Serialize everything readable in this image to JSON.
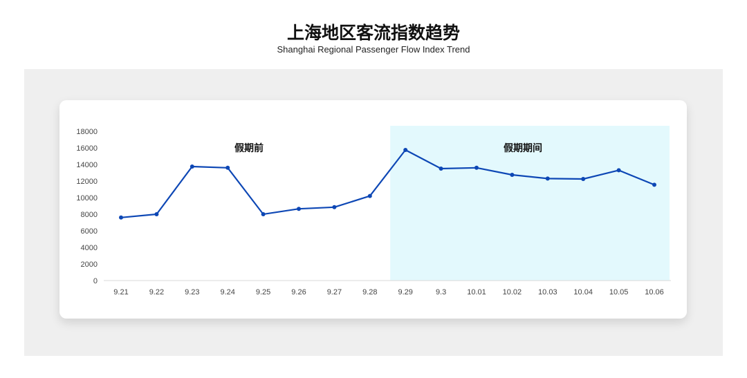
{
  "title": "上海地区客流指数趋势",
  "subtitle": "Shanghai Regional Passenger Flow Index Trend",
  "chart_data": {
    "type": "line",
    "categories": [
      "9.21",
      "9.22",
      "9.23",
      "9.24",
      "9.25",
      "9.26",
      "9.27",
      "9.28",
      "9.29",
      "9.3",
      "10.01",
      "10.02",
      "10.03",
      "10.04",
      "10.05",
      "10.06"
    ],
    "values": [
      7600,
      8000,
      13750,
      13600,
      8000,
      8650,
      8850,
      10200,
      15750,
      13500,
      13600,
      12750,
      12300,
      12250,
      13300,
      11550
    ],
    "ylim": [
      0,
      18000
    ],
    "yticks": [
      0,
      2000,
      4000,
      6000,
      8000,
      10000,
      12000,
      14000,
      16000,
      18000
    ],
    "grid": false,
    "line_color": "#0d47b5",
    "annotations": [
      {
        "label": "假期前",
        "range": [
          "9.21",
          "9.28"
        ]
      },
      {
        "label": "假期期间",
        "range": [
          "9.29",
          "10.06"
        ],
        "shade_color": "#e3f9fd"
      }
    ]
  }
}
